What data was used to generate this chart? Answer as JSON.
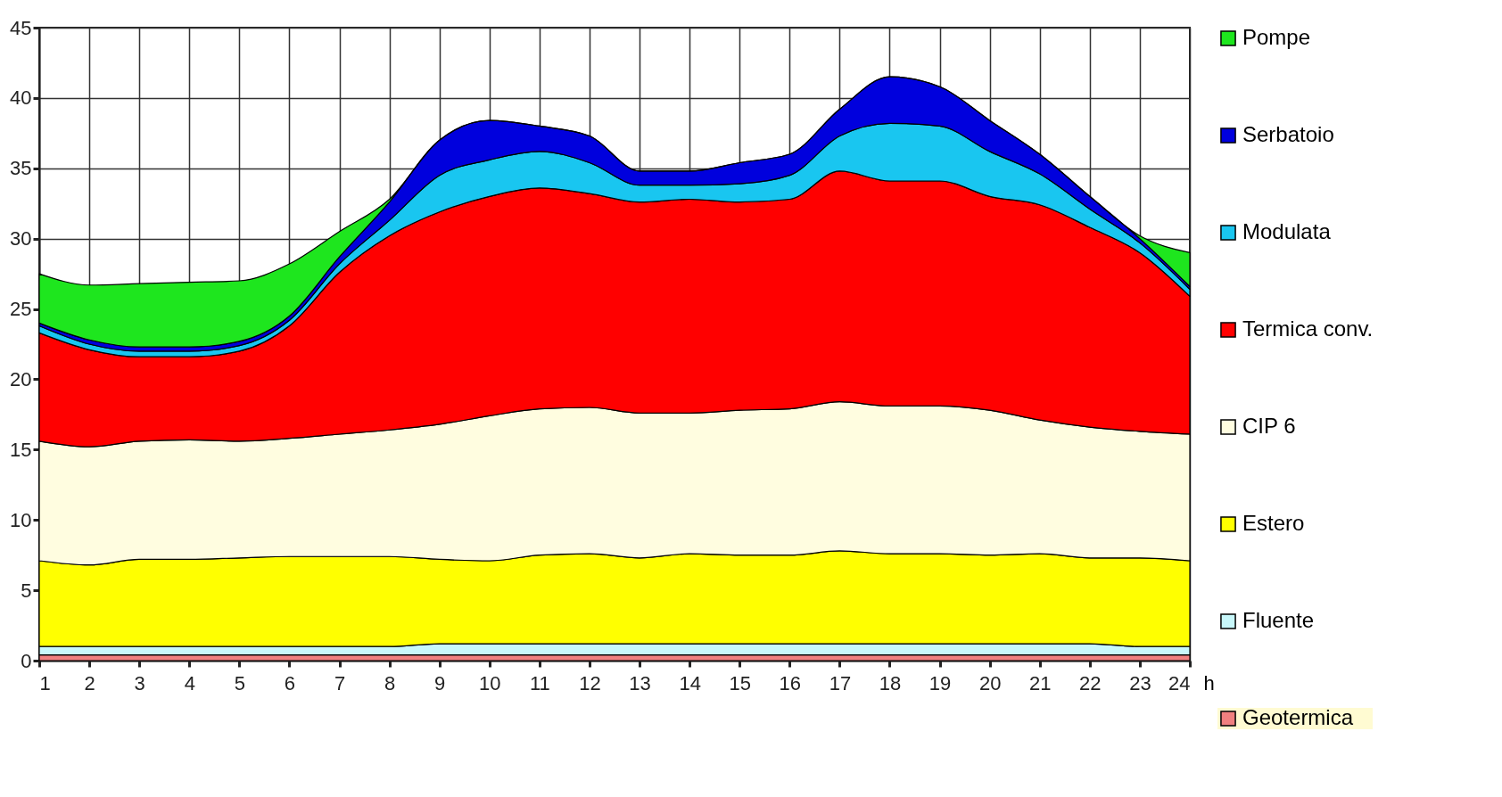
{
  "chart_data": {
    "type": "area",
    "stacked": true,
    "xlabel": "h",
    "x": [
      1,
      2,
      3,
      4,
      5,
      6,
      7,
      8,
      9,
      10,
      11,
      12,
      13,
      14,
      15,
      16,
      17,
      18,
      19,
      20,
      21,
      22,
      23,
      24
    ],
    "series": [
      {
        "name": "Geotermica",
        "color": "#f08080",
        "values": [
          0.4,
          0.4,
          0.4,
          0.4,
          0.4,
          0.4,
          0.4,
          0.4,
          0.4,
          0.4,
          0.4,
          0.4,
          0.4,
          0.4,
          0.4,
          0.4,
          0.4,
          0.4,
          0.4,
          0.4,
          0.4,
          0.4,
          0.4,
          0.4
        ]
      },
      {
        "name": "Fluente",
        "color": "#c8f8fb",
        "values": [
          0.6,
          0.6,
          0.6,
          0.6,
          0.6,
          0.6,
          0.6,
          0.6,
          0.8,
          0.8,
          0.8,
          0.8,
          0.8,
          0.8,
          0.8,
          0.8,
          0.8,
          0.8,
          0.8,
          0.8,
          0.8,
          0.8,
          0.6,
          0.6
        ]
      },
      {
        "name": "Estero",
        "color": "#ffff00",
        "values": [
          6.1,
          5.8,
          6.2,
          6.2,
          6.3,
          6.4,
          6.4,
          6.4,
          6.0,
          5.9,
          6.3,
          6.4,
          6.1,
          6.4,
          6.3,
          6.3,
          6.6,
          6.4,
          6.4,
          6.3,
          6.4,
          6.1,
          6.3,
          6.1
        ]
      },
      {
        "name": "CIP 6",
        "color": "#fffde0",
        "values": [
          8.5,
          8.4,
          8.4,
          8.5,
          8.3,
          8.4,
          8.7,
          9.0,
          9.6,
          10.3,
          10.4,
          10.4,
          10.3,
          10.0,
          10.3,
          10.4,
          10.6,
          10.5,
          10.5,
          10.3,
          9.5,
          9.3,
          9.0,
          9.0
        ]
      },
      {
        "name": "Termica conv.",
        "color": "#ff0000",
        "values": [
          7.7,
          6.9,
          6.0,
          5.9,
          6.4,
          8.0,
          11.5,
          13.8,
          15.1,
          15.6,
          15.7,
          15.2,
          15.0,
          15.2,
          14.8,
          14.9,
          16.4,
          16.0,
          16.0,
          15.2,
          15.3,
          14.2,
          12.7,
          9.8
        ]
      },
      {
        "name": "Modulata",
        "color": "#19c6f0",
        "values": [
          0.5,
          0.4,
          0.4,
          0.4,
          0.4,
          0.4,
          0.6,
          1.1,
          2.6,
          2.6,
          2.6,
          2.2,
          1.2,
          1.0,
          1.3,
          1.7,
          2.5,
          4.1,
          3.9,
          3.2,
          2.2,
          1.3,
          0.7,
          0.5
        ]
      },
      {
        "name": "Serbatoio",
        "color": "#0000dd",
        "values": [
          0.2,
          0.3,
          0.3,
          0.3,
          0.3,
          0.3,
          0.5,
          1.3,
          2.5,
          2.8,
          1.8,
          1.9,
          1.0,
          1.0,
          1.5,
          1.5,
          1.9,
          3.3,
          2.8,
          2.2,
          1.4,
          0.9,
          0.3,
          0.2
        ]
      },
      {
        "name": "Pompe",
        "color": "#1ee61e",
        "values": [
          3.5,
          3.9,
          4.5,
          4.6,
          4.3,
          3.7,
          1.8,
          0.2,
          0,
          0,
          0,
          0,
          0,
          0,
          0,
          0,
          0,
          0,
          0,
          0,
          0,
          0,
          0.2,
          2.4
        ]
      }
    ],
    "xlim": [
      1,
      24
    ],
    "xticks": [
      1,
      2,
      3,
      4,
      5,
      6,
      7,
      8,
      9,
      10,
      11,
      12,
      13,
      14,
      15,
      16,
      17,
      18,
      19,
      20,
      21,
      22,
      23,
      24
    ],
    "ylim": [
      0,
      45
    ],
    "yticks": [
      0,
      5,
      10,
      15,
      20,
      25,
      30,
      35,
      40,
      45
    ],
    "grid": true,
    "legend": "right"
  }
}
